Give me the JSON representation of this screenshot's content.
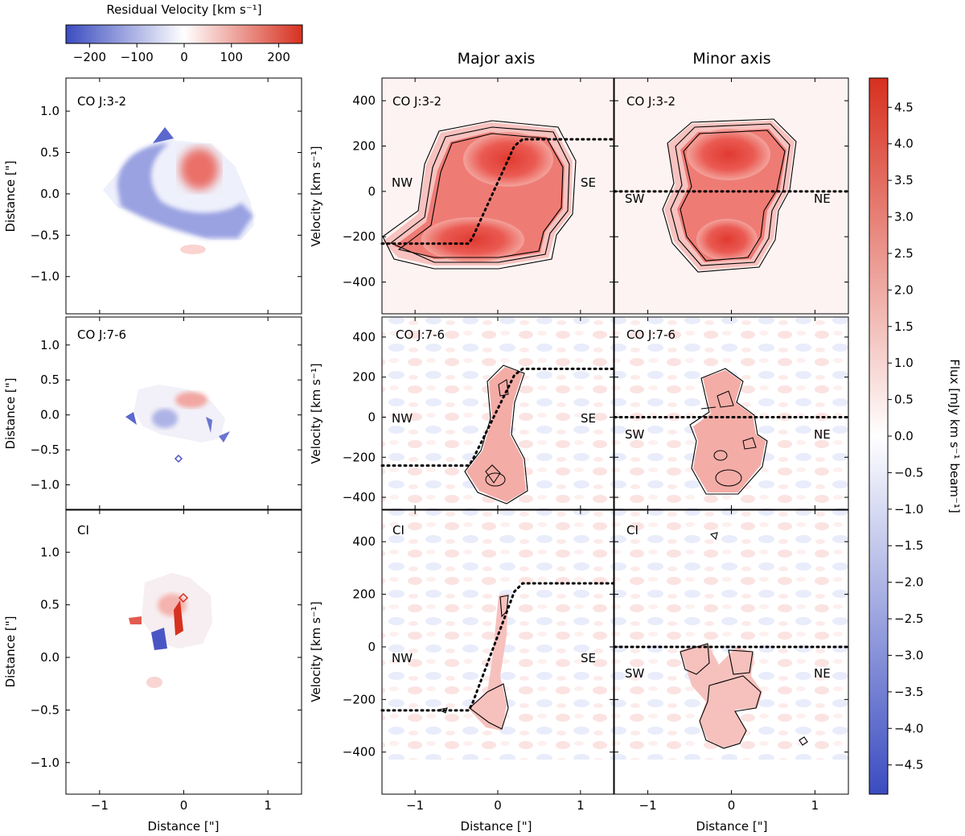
{
  "figure": {
    "top_colorbar": {
      "label": "Residual Velocity [km s⁻¹]",
      "ticks": [
        -200,
        -100,
        0,
        100,
        200
      ],
      "range": [
        -250,
        250
      ]
    },
    "right_colorbar": {
      "label": "Flux [mJy km s⁻¹ beam⁻¹]",
      "ticks": [
        -4.5,
        -4.0,
        -3.5,
        -3.0,
        -2.5,
        -2.0,
        -1.5,
        -1.0,
        -0.5,
        0.0,
        0.5,
        1.0,
        1.5,
        2.0,
        2.5,
        3.0,
        3.5,
        4.0,
        4.5
      ],
      "range": [
        -4.9,
        4.9
      ]
    },
    "column_titles": [
      "Major axis",
      "Minor axis"
    ],
    "row_labels": [
      "CO J:3-2",
      "CO J:7-6",
      "CI"
    ],
    "map_ylabel": "Distance [\"]",
    "pv_ylabel": "Velocity [km s⁻¹]",
    "xlabel": "Distance [\"]",
    "orientation_labels": {
      "major": [
        "NW",
        "SE"
      ],
      "minor": [
        "SW",
        "NE"
      ]
    }
  },
  "chart_data": [
    {
      "type": "heatmap",
      "panel": "residual-velocity-maps",
      "rows": [
        "CO J:3-2",
        "CO J:7-6",
        "CI"
      ],
      "xlabel": "Distance [\"]",
      "ylabel": "Distance [\"]",
      "xlim": [
        -1.4,
        1.4
      ],
      "ylim": [
        -1.4,
        1.4
      ],
      "xticks": [
        -1,
        0,
        1
      ],
      "yticks": [
        -1.0,
        -0.5,
        0.0,
        0.5,
        1.0
      ],
      "color_range": [
        -250,
        250
      ]
    },
    {
      "type": "heatmap",
      "panel": "major-axis-pv",
      "title": "Major axis",
      "rows": [
        "CO J:3-2",
        "CO J:7-6",
        "CI"
      ],
      "xlabel": "Distance [\"]",
      "ylabel": "Velocity [km s⁻¹]",
      "xlim": [
        -1.4,
        1.4
      ],
      "ylim": [
        -540,
        500
      ],
      "xticks": [
        -1,
        0,
        1
      ],
      "yticks": [
        -400,
        -200,
        0,
        200,
        400
      ],
      "model_curve": {
        "x": [
          -1.4,
          -0.35,
          -0.3,
          -0.2,
          -0.1,
          0.0,
          0.1,
          0.2,
          0.3,
          1.4
        ],
        "y": [
          -230,
          -230,
          -200,
          -120,
          -40,
          40,
          120,
          200,
          230,
          230
        ]
      },
      "labels": [
        "NW",
        "SE"
      ]
    },
    {
      "type": "heatmap",
      "panel": "minor-axis-pv",
      "title": "Minor axis",
      "rows": [
        "CO J:3-2",
        "CO J:7-6",
        "CI"
      ],
      "xlabel": "Distance [\"]",
      "xlim": [
        -1.4,
        1.4
      ],
      "ylim": [
        -540,
        500
      ],
      "xticks": [
        -1,
        0,
        1
      ],
      "yticks": [
        -400,
        -200,
        0,
        200,
        400
      ],
      "model_line_y": 0,
      "labels": [
        "SW",
        "NE"
      ]
    }
  ]
}
